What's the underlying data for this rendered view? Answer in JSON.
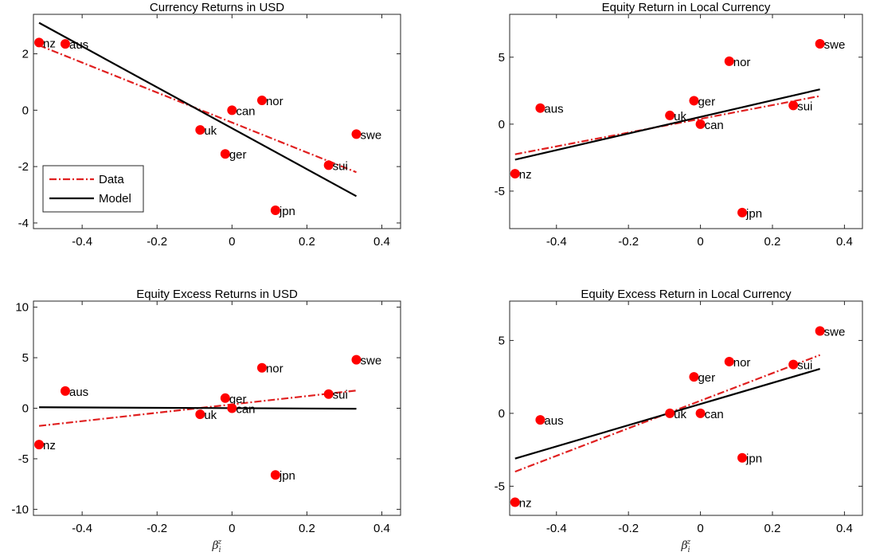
{
  "chart_data": [
    {
      "type": "scatter",
      "title": "Currency Returns in USD",
      "xlabel": "",
      "xlim": [
        -0.53,
        0.45
      ],
      "ylim": [
        -4.2,
        3.4
      ],
      "xticks": [
        -0.4,
        -0.2,
        0,
        0.2,
        0.4
      ],
      "xtick_labels": [
        "-0.4",
        "-0.2",
        "0",
        "0.2",
        "0.4"
      ],
      "yticks": [
        -4,
        -2,
        0,
        2
      ],
      "ytick_labels": [
        "-4",
        "-2",
        "0",
        "2"
      ],
      "points": [
        {
          "label": "nz",
          "x": -0.515,
          "y": 2.4
        },
        {
          "label": "aus",
          "x": -0.445,
          "y": 2.35
        },
        {
          "label": "uk",
          "x": -0.085,
          "y": -0.7
        },
        {
          "label": "ger",
          "x": -0.018,
          "y": -1.55
        },
        {
          "label": "can",
          "x": 0.0,
          "y": 0.0
        },
        {
          "label": "nor",
          "x": 0.08,
          "y": 0.35
        },
        {
          "label": "jpn",
          "x": 0.116,
          "y": -3.55
        },
        {
          "label": "sui",
          "x": 0.258,
          "y": -1.95
        },
        {
          "label": "swe",
          "x": 0.332,
          "y": -0.85
        }
      ],
      "series": [
        {
          "name": "Data",
          "x": [
            -0.515,
            0.332
          ],
          "y": [
            2.3,
            -2.2
          ]
        },
        {
          "name": "Model",
          "x": [
            -0.515,
            0.332
          ],
          "y": [
            3.1,
            -3.05
          ]
        }
      ],
      "legend": {
        "position": "bottom-left",
        "entries": [
          "Data",
          "Model"
        ]
      }
    },
    {
      "type": "scatter",
      "title": "Equity Return in Local Currency",
      "xlabel": "",
      "xlim": [
        -0.53,
        0.45
      ],
      "ylim": [
        -7.8,
        8.2
      ],
      "xticks": [
        -0.4,
        -0.2,
        0,
        0.2,
        0.4
      ],
      "xtick_labels": [
        "-0.4",
        "-0.2",
        "0",
        "0.2",
        "0.4"
      ],
      "yticks": [
        -5,
        0,
        5
      ],
      "ytick_labels": [
        "-5",
        "0",
        "5"
      ],
      "points": [
        {
          "label": "nz",
          "x": -0.515,
          "y": -3.7
        },
        {
          "label": "aus",
          "x": -0.445,
          "y": 1.2
        },
        {
          "label": "uk",
          "x": -0.085,
          "y": 0.65
        },
        {
          "label": "ger",
          "x": -0.018,
          "y": 1.75
        },
        {
          "label": "can",
          "x": 0.0,
          "y": 0.0
        },
        {
          "label": "nor",
          "x": 0.08,
          "y": 4.7
        },
        {
          "label": "jpn",
          "x": 0.116,
          "y": -6.6
        },
        {
          "label": "sui",
          "x": 0.258,
          "y": 1.4
        },
        {
          "label": "swe",
          "x": 0.332,
          "y": 6.0
        }
      ],
      "series": [
        {
          "name": "Data",
          "x": [
            -0.515,
            0.332
          ],
          "y": [
            -2.25,
            2.1
          ]
        },
        {
          "name": "Model",
          "x": [
            -0.515,
            0.332
          ],
          "y": [
            -2.65,
            2.6
          ]
        }
      ]
    },
    {
      "type": "scatter",
      "title": "Equity Excess Returns in USD",
      "xlabel": "β",
      "xlabel_sub": "i",
      "xlabel_sup": "z",
      "xlim": [
        -0.53,
        0.45
      ],
      "ylim": [
        -10.6,
        10.6
      ],
      "xticks": [
        -0.4,
        -0.2,
        0,
        0.2,
        0.4
      ],
      "xtick_labels": [
        "-0.4",
        "-0.2",
        "0",
        "0.2",
        "0.4"
      ],
      "yticks": [
        -10,
        -5,
        0,
        5,
        10
      ],
      "ytick_labels": [
        "-10",
        "-5",
        "0",
        "5",
        "10"
      ],
      "points": [
        {
          "label": "nz",
          "x": -0.515,
          "y": -3.6
        },
        {
          "label": "aus",
          "x": -0.445,
          "y": 1.7
        },
        {
          "label": "uk",
          "x": -0.085,
          "y": -0.6
        },
        {
          "label": "ger",
          "x": -0.018,
          "y": 1.0
        },
        {
          "label": "can",
          "x": 0.0,
          "y": 0.0
        },
        {
          "label": "nor",
          "x": 0.08,
          "y": 4.0
        },
        {
          "label": "jpn",
          "x": 0.116,
          "y": -6.6
        },
        {
          "label": "sui",
          "x": 0.258,
          "y": 1.4
        },
        {
          "label": "swe",
          "x": 0.332,
          "y": 4.8
        }
      ],
      "series": [
        {
          "name": "Data",
          "x": [
            -0.515,
            0.332
          ],
          "y": [
            -1.75,
            1.75
          ]
        },
        {
          "name": "Model",
          "x": [
            -0.515,
            0.332
          ],
          "y": [
            0.1,
            -0.05
          ]
        }
      ]
    },
    {
      "type": "scatter",
      "title": "Equity Excess Return in Local Currency",
      "xlabel": "β",
      "xlabel_sub": "i",
      "xlabel_sup": "z",
      "xlim": [
        -0.53,
        0.45
      ],
      "ylim": [
        -7.0,
        7.7
      ],
      "xticks": [
        -0.4,
        -0.2,
        0,
        0.2,
        0.4
      ],
      "xtick_labels": [
        "-0.4",
        "-0.2",
        "0",
        "0.2",
        "0.4"
      ],
      "yticks": [
        -5,
        0,
        5
      ],
      "ytick_labels": [
        "-5",
        "0",
        "5"
      ],
      "points": [
        {
          "label": "nz",
          "x": -0.515,
          "y": -6.1
        },
        {
          "label": "aus",
          "x": -0.445,
          "y": -0.45
        },
        {
          "label": "uk",
          "x": -0.085,
          "y": 0.0
        },
        {
          "label": "ger",
          "x": -0.018,
          "y": 2.5
        },
        {
          "label": "can",
          "x": 0.0,
          "y": 0.0
        },
        {
          "label": "nor",
          "x": 0.08,
          "y": 3.55
        },
        {
          "label": "jpn",
          "x": 0.116,
          "y": -3.05
        },
        {
          "label": "sui",
          "x": 0.258,
          "y": 3.35
        },
        {
          "label": "swe",
          "x": 0.332,
          "y": 5.65
        }
      ],
      "series": [
        {
          "name": "Data",
          "x": [
            -0.515,
            0.332
          ],
          "y": [
            -4.0,
            4.0
          ]
        },
        {
          "name": "Model",
          "x": [
            -0.515,
            0.332
          ],
          "y": [
            -3.1,
            3.05
          ]
        }
      ]
    }
  ],
  "colors": {
    "points": "#ff0000",
    "data_line": "#e02020",
    "model_line": "#000000",
    "axes": "#262626"
  }
}
